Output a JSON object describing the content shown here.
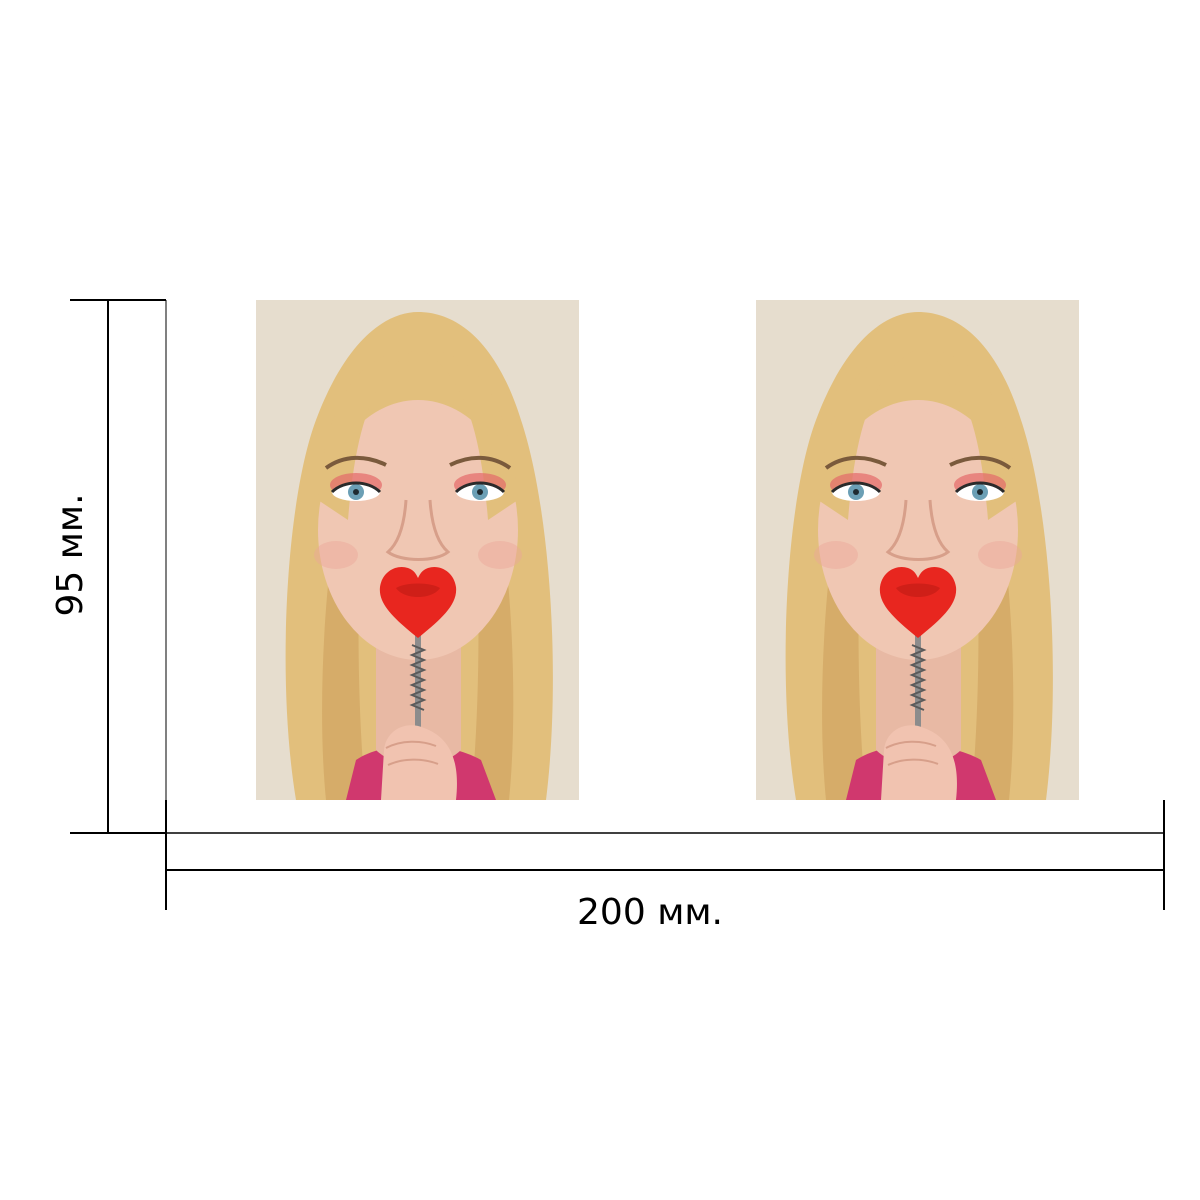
{
  "dimensions": {
    "height_label": "95 мм.",
    "width_label": "200 мм."
  },
  "photos": [
    {
      "description_name": "photo-left"
    },
    {
      "description_name": "photo-right"
    }
  ],
  "colors": {
    "line": "#000000",
    "background": "#ffffff",
    "photo_backdrop": "#e6ddce",
    "hair": "#e2bf7c",
    "hair_shadow": "#c99a56",
    "skin": "#f0c7b3",
    "heart": "#e8261f",
    "shirt": "#d0386e",
    "eyes": "#6b9fb5"
  }
}
